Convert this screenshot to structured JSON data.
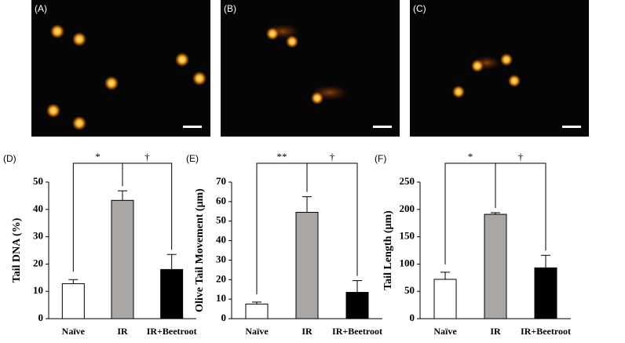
{
  "images": [
    "(A)",
    "(B)",
    "(C)"
  ],
  "chart_data": [
    {
      "type": "bar",
      "panel_label": "(D)",
      "y_label": "Tail DNA (%)",
      "categories": [
        "Naïve",
        "IR",
        "IR+Beetroot"
      ],
      "values": [
        12.8,
        43.3,
        18
      ],
      "errors": [
        1.5,
        3.5,
        5.5
      ],
      "colors": [
        "#ffffff",
        "#a9a6a3",
        "#000000"
      ],
      "ylim": [
        0,
        50
      ],
      "yticks": [
        0,
        10,
        20,
        30,
        40,
        50
      ],
      "annotations": [
        "*",
        "†"
      ]
    },
    {
      "type": "bar",
      "panel_label": "(E)",
      "y_label": "Olive Tail Movement (μm)",
      "categories": [
        "Naïve",
        "IR",
        "IR+Beetroot"
      ],
      "values": [
        7.5,
        54.5,
        13.5
      ],
      "errors": [
        1,
        8,
        6
      ],
      "colors": [
        "#ffffff",
        "#a9a6a3",
        "#000000"
      ],
      "ylim": [
        0,
        70
      ],
      "yticks": [
        0,
        10,
        20,
        30,
        40,
        50,
        60,
        70
      ],
      "annotations": [
        "**",
        "†"
      ]
    },
    {
      "type": "bar",
      "panel_label": "(F)",
      "y_label": "Tail Length (μm)",
      "categories": [
        "Naïve",
        "IR",
        "IR+Beetroot"
      ],
      "values": [
        72,
        191,
        93
      ],
      "errors": [
        13,
        3,
        23
      ],
      "colors": [
        "#ffffff",
        "#a9a6a3",
        "#000000"
      ],
      "ylim": [
        0,
        250
      ],
      "yticks": [
        0,
        50,
        100,
        150,
        200,
        250
      ],
      "annotations": [
        "*",
        "†"
      ]
    }
  ]
}
